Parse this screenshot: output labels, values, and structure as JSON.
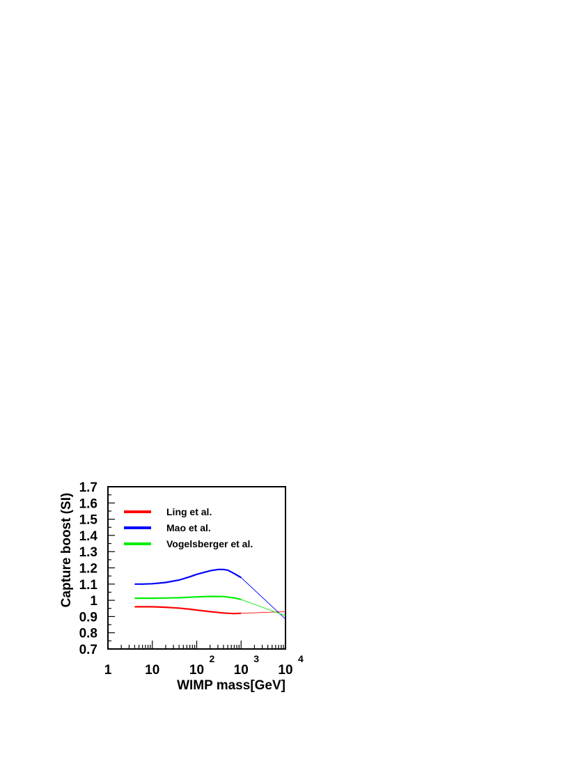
{
  "chart_data": {
    "type": "line",
    "xscale": "log",
    "xlim": [
      1,
      10000
    ],
    "ylim": [
      0.7,
      1.7
    ],
    "xlabel": "WIMP mass[GeV]",
    "ylabel": "Capture boost (SI)",
    "grid": false,
    "legend_position": "top-left",
    "x_tick_labels": [
      {
        "base": "1",
        "exp": ""
      },
      {
        "base": "10",
        "exp": ""
      },
      {
        "base": "10",
        "exp": "2"
      },
      {
        "base": "10",
        "exp": "3"
      },
      {
        "base": "10",
        "exp": "4"
      }
    ],
    "y_tick_labels": [
      "0.7",
      "0.8",
      "0.9",
      "1",
      "1.1",
      "1.2",
      "1.3",
      "1.4",
      "1.5",
      "1.6",
      "1.7"
    ],
    "series": [
      {
        "name": "Ling et al.",
        "color": "#ff0000",
        "x": [
          4,
          6,
          10,
          20,
          40,
          70,
          100,
          200,
          400,
          700,
          1000,
          10000
        ],
        "y": [
          0.96,
          0.96,
          0.96,
          0.957,
          0.952,
          0.945,
          0.94,
          0.93,
          0.922,
          0.918,
          0.92,
          0.93
        ]
      },
      {
        "name": "Mao et al.",
        "color": "#0000ff",
        "x": [
          4,
          6,
          10,
          20,
          40,
          70,
          100,
          200,
          300,
          400,
          500,
          700,
          1000,
          10000
        ],
        "y": [
          1.1,
          1.1,
          1.102,
          1.11,
          1.125,
          1.145,
          1.16,
          1.182,
          1.19,
          1.19,
          1.186,
          1.165,
          1.14,
          0.885
        ]
      },
      {
        "name": "Vogelsberger et al.",
        "color": "#00ee00",
        "x": [
          4,
          6,
          10,
          20,
          40,
          70,
          100,
          200,
          400,
          700,
          1000,
          10000
        ],
        "y": [
          1.013,
          1.013,
          1.013,
          1.014,
          1.016,
          1.019,
          1.021,
          1.024,
          1.023,
          1.015,
          1.005,
          0.905
        ]
      }
    ]
  }
}
